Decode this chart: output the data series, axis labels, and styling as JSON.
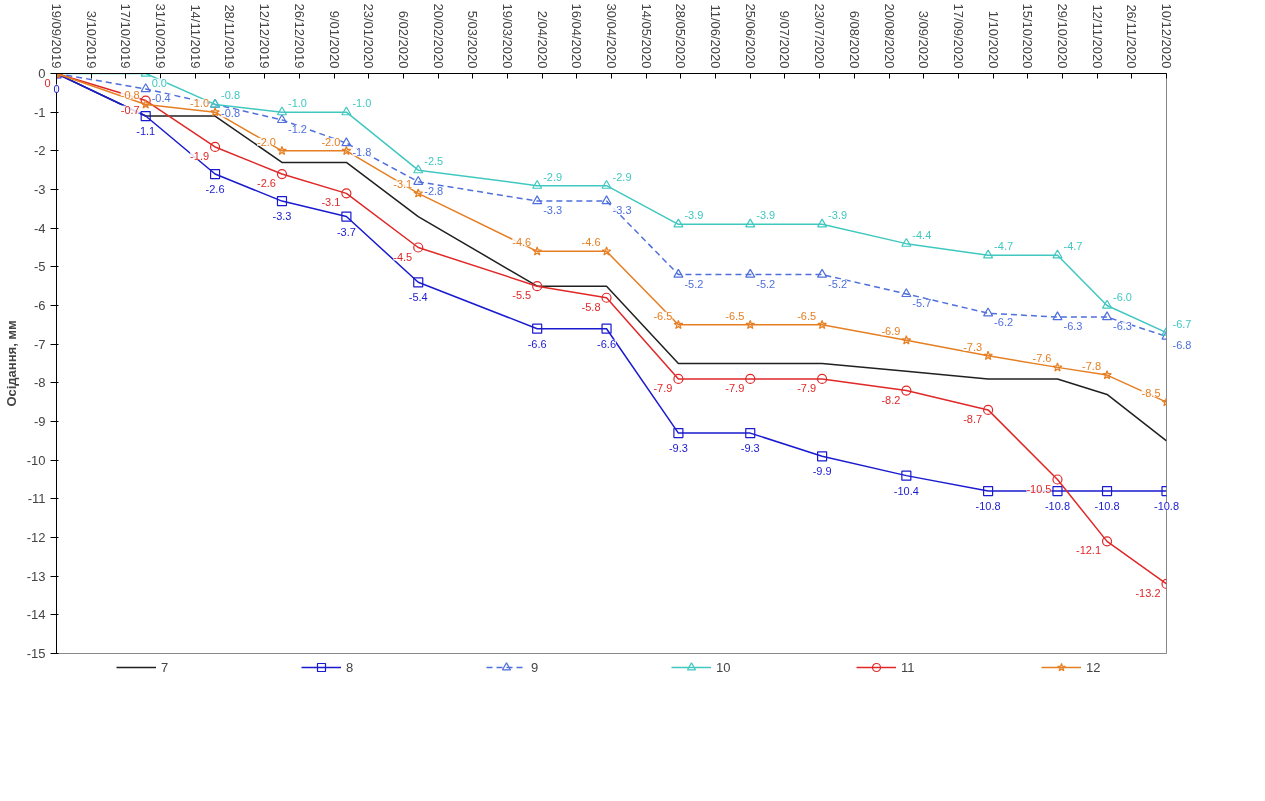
{
  "chart_data": {
    "type": "line",
    "ylabel": "Осідання, мм",
    "x": [
      "2019-09-19",
      "2019-10-25",
      "2019-11-22",
      "2019-12-19",
      "2020-01-14",
      "2020-02-12",
      "2020-03-31",
      "2020-04-28",
      "2020-05-27",
      "2020-06-25",
      "2020-07-24",
      "2020-08-27",
      "2020-09-29",
      "2020-10-27",
      "2020-11-16",
      "2020-12-10"
    ],
    "series": [
      {
        "name": "7",
        "color": "#202020",
        "marker": "none",
        "values": [
          0,
          -1.1,
          -1.1,
          -2.3,
          -2.3,
          -3.7,
          -5.5,
          -5.5,
          -7.5,
          -7.5,
          -7.5,
          -7.7,
          -7.9,
          -7.9,
          -8.3,
          -9.5
        ]
      },
      {
        "name": "8",
        "color": "#1a1ad0",
        "marker": "square",
        "values": [
          0,
          -1.1,
          -2.6,
          -3.3,
          -3.7,
          -5.4,
          -6.6,
          -6.6,
          -9.3,
          -9.3,
          -9.9,
          -10.4,
          -10.8,
          -10.8,
          -10.8,
          -10.8
        ],
        "value_labels": [
          "0",
          "-1.1",
          "-2.6",
          "-3.3",
          "-3.7",
          "-5.4",
          "-6.6",
          "-6.6",
          "-9.3",
          "-9.3",
          "-9.9",
          "-10.4",
          "-10.8",
          "-10.8",
          "-10.8",
          "-10.8"
        ]
      },
      {
        "name": "9",
        "color": "#4f6fdc",
        "marker": "triangle",
        "line_style": "dashed",
        "values": [
          0,
          -0.4,
          -0.8,
          -1.2,
          -1.8,
          -2.8,
          -3.3,
          -3.3,
          -5.2,
          -5.2,
          -5.2,
          -5.7,
          -6.2,
          -6.3,
          -6.3,
          -6.8
        ],
        "value_labels": [
          null,
          "-0.4",
          "-0.8",
          "-1.2",
          "-1.8",
          "-2.8",
          "-3.3",
          "-3.3",
          "-5.2",
          "-5.2",
          "-5.2",
          "-5.7",
          "-6.2",
          "-6.3",
          "-6.3",
          "-6.8"
        ]
      },
      {
        "name": "10",
        "color": "#40c8c0",
        "marker": "triangle",
        "values": [
          0,
          0.0,
          -0.8,
          -1.0,
          -1.0,
          -2.5,
          -2.9,
          -2.9,
          -3.9,
          -3.9,
          -3.9,
          -4.4,
          -4.7,
          -4.7,
          -6.0,
          -6.7
        ],
        "value_labels": [
          null,
          "0.0",
          "-0.8",
          "-1.0",
          "-1.0",
          "-2.5",
          "-2.9",
          "-2.9",
          "-3.9",
          "-3.9",
          "-3.9",
          "-4.4",
          "-4.7",
          "-4.7",
          "-6.0",
          "-6.7"
        ]
      },
      {
        "name": "11",
        "color": "#e02828",
        "marker": "circle",
        "values": [
          0,
          -0.7,
          -1.9,
          -2.6,
          -3.1,
          -4.5,
          -5.5,
          -5.8,
          -7.9,
          -7.9,
          -7.9,
          -8.2,
          -8.7,
          -10.5,
          -12.1,
          -13.2
        ],
        "value_labels": [
          "0",
          "-0.7",
          "-1.9",
          "-2.6",
          "-3.1",
          "-4.5",
          "-5.5",
          "-5.8",
          "-7.9",
          "-7.9",
          "-7.9",
          "-8.2",
          "-8.7",
          "-10.5",
          "-12.1",
          "-13.2"
        ]
      },
      {
        "name": "12",
        "color": "#e67e22",
        "marker": "star",
        "values": [
          0,
          -0.8,
          -1.0,
          -2.0,
          -2.0,
          -3.1,
          -4.6,
          -4.6,
          -6.5,
          -6.5,
          -6.5,
          -6.9,
          -7.3,
          -7.6,
          -7.8,
          -8.5
        ],
        "value_labels": [
          null,
          "-0.8",
          "-1.0",
          "-2.0",
          "-2.0",
          "-3.1",
          "-4.6",
          "-4.6",
          "-6.5",
          "-6.5",
          "-6.5",
          "-6.9",
          "-7.3",
          "-7.6",
          "-7.8",
          "-8.5"
        ]
      }
    ],
    "xlim": [
      "2019-09-19",
      "2020-12-10"
    ],
    "xticks": [
      {
        "value": "2019-09-19",
        "label": "19/09/2019"
      },
      {
        "value": "2019-10-03",
        "label": "3/10/2019"
      },
      {
        "value": "2019-10-17",
        "label": "17/10/2019"
      },
      {
        "value": "2019-10-31",
        "label": "31/10/2019"
      },
      {
        "value": "2019-11-14",
        "label": "14/11/2019"
      },
      {
        "value": "2019-11-28",
        "label": "28/11/2019"
      },
      {
        "value": "2019-12-12",
        "label": "12/12/2019"
      },
      {
        "value": "2019-12-26",
        "label": "26/12/2019"
      },
      {
        "value": "2020-01-09",
        "label": "9/01/2020"
      },
      {
        "value": "2020-01-23",
        "label": "23/01/2020"
      },
      {
        "value": "2020-02-06",
        "label": "6/02/2020"
      },
      {
        "value": "2020-02-20",
        "label": "20/02/2020"
      },
      {
        "value": "2020-03-05",
        "label": "5/03/2020"
      },
      {
        "value": "2020-03-19",
        "label": "19/03/2020"
      },
      {
        "value": "2020-04-02",
        "label": "2/04/2020"
      },
      {
        "value": "2020-04-16",
        "label": "16/04/2020"
      },
      {
        "value": "2020-04-30",
        "label": "30/04/2020"
      },
      {
        "value": "2020-05-14",
        "label": "14/05/2020"
      },
      {
        "value": "2020-05-28",
        "label": "28/05/2020"
      },
      {
        "value": "2020-06-11",
        "label": "11/06/2020"
      },
      {
        "value": "2020-06-25",
        "label": "25/06/2020"
      },
      {
        "value": "2020-07-09",
        "label": "9/07/2020"
      },
      {
        "value": "2020-07-23",
        "label": "23/07/2020"
      },
      {
        "value": "2020-08-06",
        "label": "6/08/2020"
      },
      {
        "value": "2020-08-20",
        "label": "20/08/2020"
      },
      {
        "value": "2020-09-03",
        "label": "3/09/2020"
      },
      {
        "value": "2020-09-17",
        "label": "17/09/2020"
      },
      {
        "value": "2020-10-01",
        "label": "1/10/2020"
      },
      {
        "value": "2020-10-15",
        "label": "15/10/2020"
      },
      {
        "value": "2020-10-29",
        "label": "29/10/2020"
      },
      {
        "value": "2020-11-12",
        "label": "12/11/2020"
      },
      {
        "value": "2020-11-26",
        "label": "26/11/2020"
      },
      {
        "value": "2020-12-10",
        "label": "10/12/2020"
      }
    ],
    "ylim": [
      -15,
      0
    ],
    "yticks": [
      0,
      -1,
      -2,
      -3,
      -4,
      -5,
      -6,
      -7,
      -8,
      -9,
      -10,
      -11,
      -12,
      -13,
      -14,
      -15
    ],
    "grid": false,
    "legend": "bottom"
  }
}
